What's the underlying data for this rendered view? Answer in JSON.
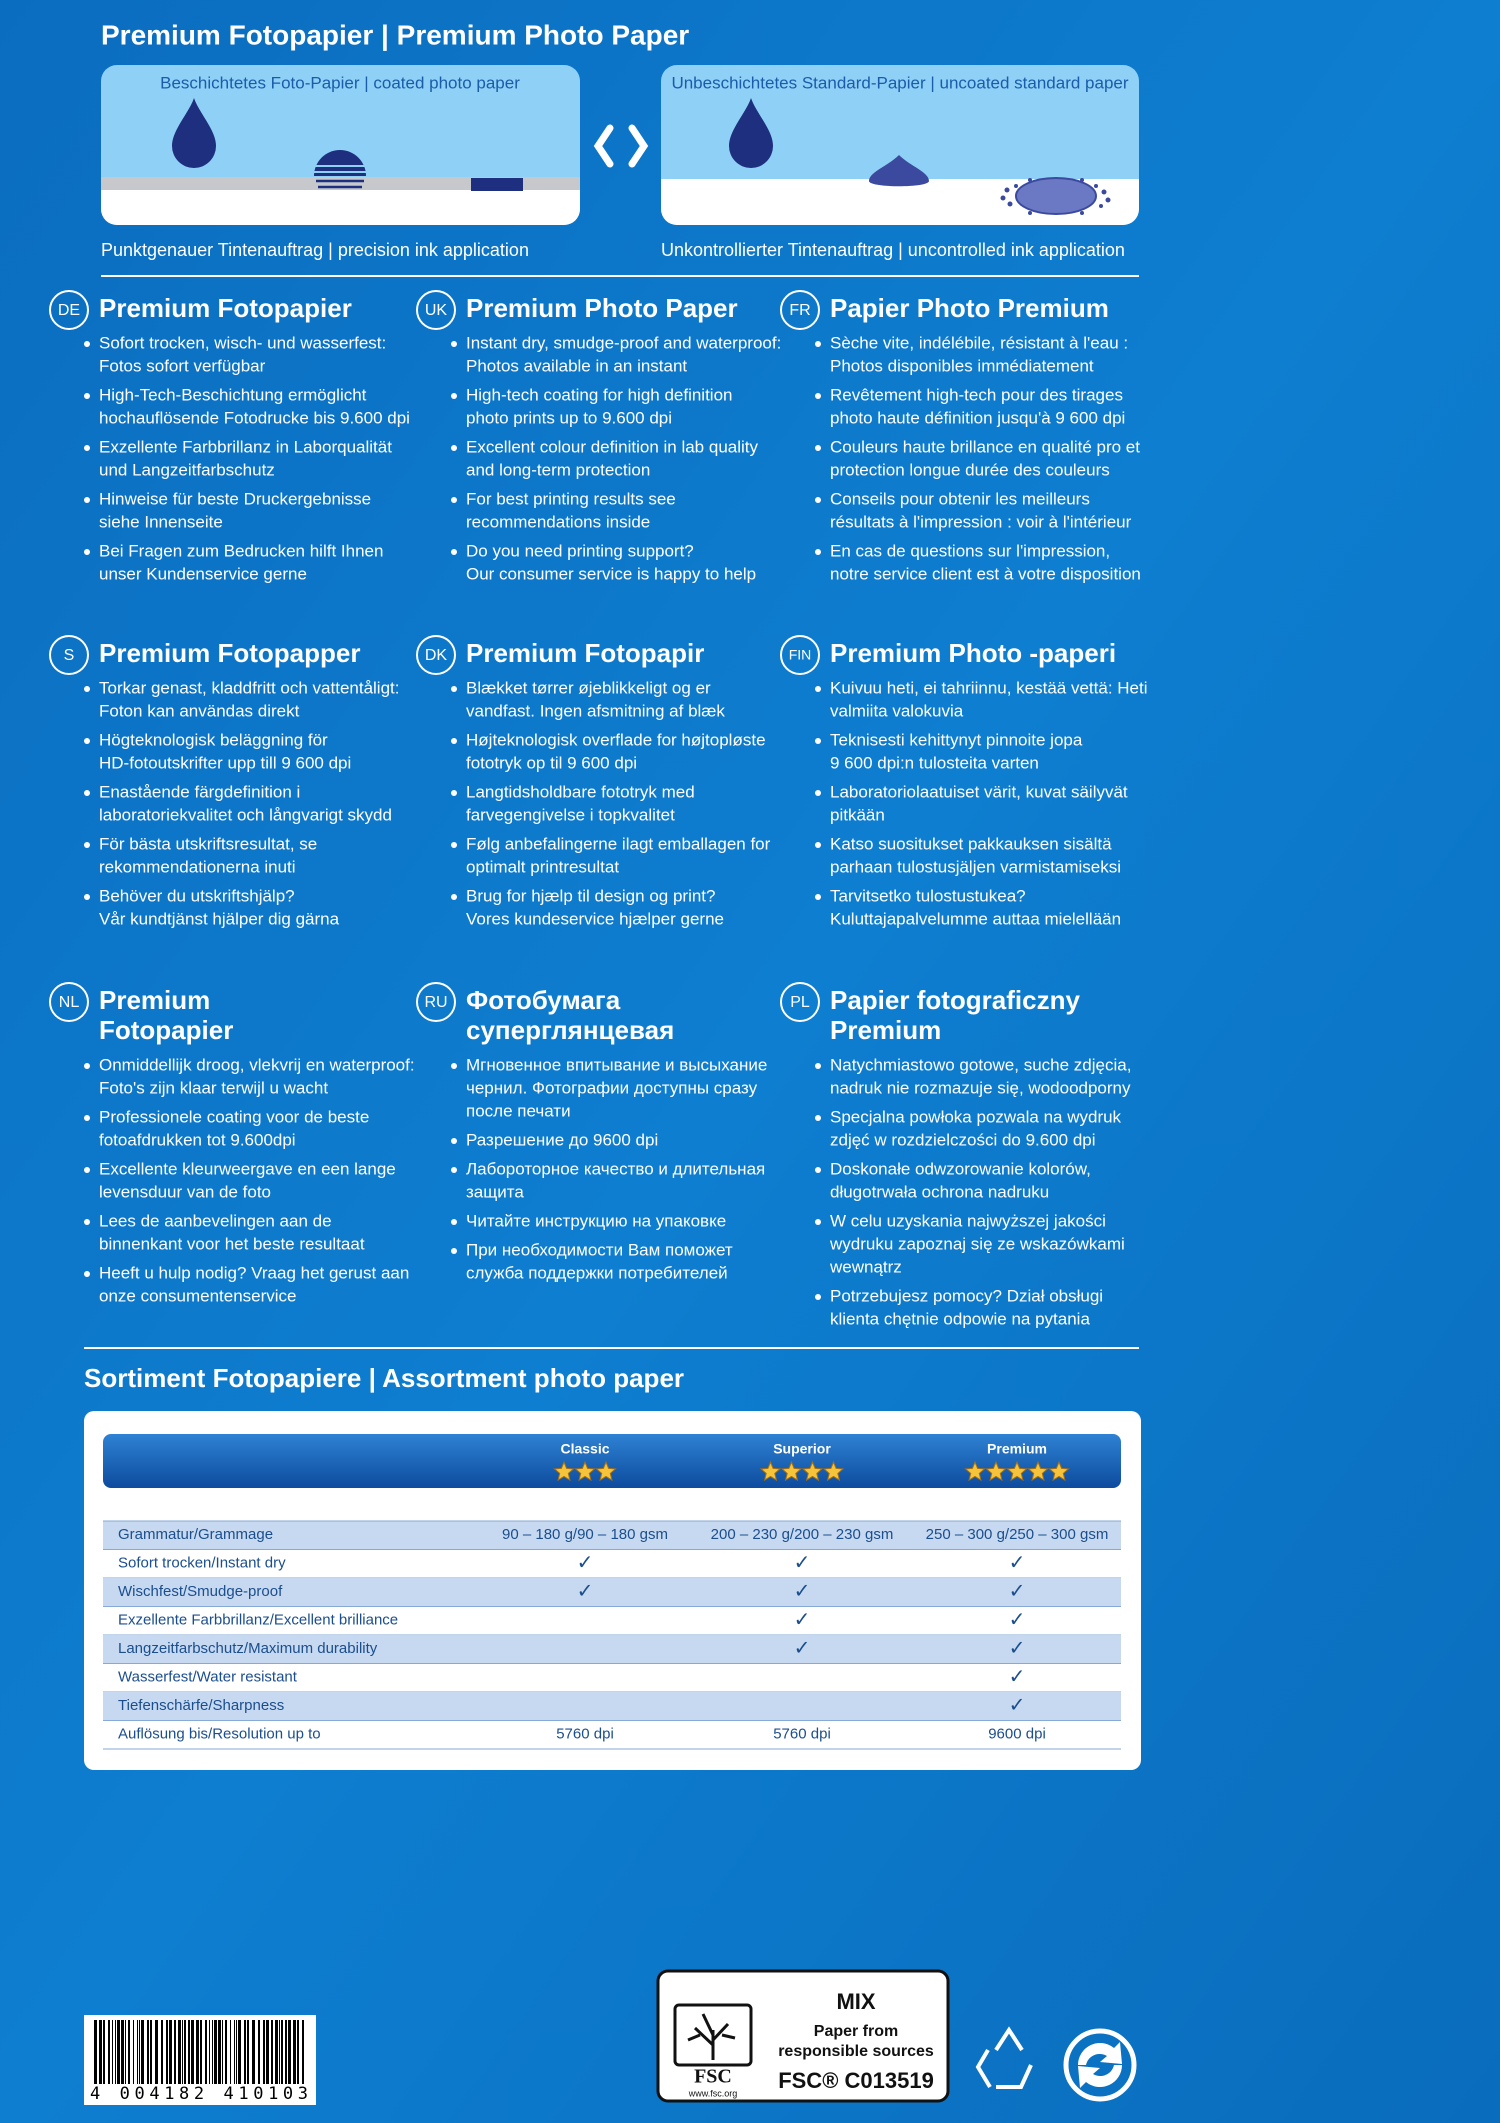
{
  "header": {
    "title": "Premium Fotopapier | Premium Photo Paper",
    "coated": {
      "label": "Beschichtetes Foto-Papier | coated photo paper",
      "caption": "Punktgenauer Tintenauftrag | precision ink application"
    },
    "uncoated": {
      "label": "Unbeschichtetes Standard-Papier | uncoated standard paper",
      "caption": "Unkontrollierter Tintenauftrag | uncontrolled ink application"
    }
  },
  "sections": [
    {
      "code": "DE",
      "heading": [
        "Premium Fotopapier"
      ],
      "bullets": [
        [
          "Sofort trocken, wisch- und wasserfest:",
          "Fotos sofort verfügbar"
        ],
        [
          "High-Tech-Beschichtung ermöglicht",
          "hochauflösende Fotodrucke bis 9.600 dpi"
        ],
        [
          "Exzellente Farbbrillanz in Laborqualität",
          "und Langzeitfarbschutz"
        ],
        [
          "Hinweise für beste Druckergebnisse",
          "siehe Innenseite"
        ],
        [
          "Bei Fragen zum Bedrucken hilft Ihnen",
          "unser Kundenservice gerne"
        ]
      ]
    },
    {
      "code": "UK",
      "heading": [
        "Premium Photo Paper"
      ],
      "bullets": [
        [
          "Instant dry, smudge-proof and waterproof:",
          "Photos available in an instant"
        ],
        [
          "High-tech coating for high definition",
          "photo prints up to 9.600 dpi"
        ],
        [
          "Excellent colour definition in lab quality",
          "and long-term protection"
        ],
        [
          "For best printing results see",
          "recommendations inside"
        ],
        [
          "Do you need printing support?",
          "Our consumer service is happy to help"
        ]
      ]
    },
    {
      "code": "FR",
      "heading": [
        "Papier Photo Premium"
      ],
      "bullets": [
        [
          "Sèche vite, indélébile, résistant à l'eau :",
          "Photos disponibles immédiatement"
        ],
        [
          "Revêtement high-tech pour des tirages",
          "photo haute définition jusqu'à 9 600 dpi"
        ],
        [
          "Couleurs haute brillance en qualité pro et",
          "protection longue durée des couleurs"
        ],
        [
          "Conseils pour obtenir les meilleurs",
          "résultats à l'impression : voir à l'intérieur"
        ],
        [
          "En cas de questions sur l'impression,",
          "notre service client est à votre disposition"
        ]
      ]
    },
    {
      "code": "S",
      "heading": [
        "Premium Fotopapper"
      ],
      "bullets": [
        [
          "Torkar genast, kladdfritt och vattentåligt:",
          "Foton kan användas direkt"
        ],
        [
          "Högteknologisk beläggning för",
          "HD-fotoutskrifter upp till 9 600 dpi"
        ],
        [
          "Enastående färgdefinition i",
          "laboratoriekvalitet och långvarigt skydd"
        ],
        [
          "För bästa utskriftsresultat, se",
          "rekommendationerna inuti"
        ],
        [
          "Behöver du utskriftshjälp?",
          "Vår kundtjänst hjälper dig gärna"
        ]
      ]
    },
    {
      "code": "DK",
      "heading": [
        "Premium Fotopapir"
      ],
      "bullets": [
        [
          "Blækket tørrer øjeblikkeligt og er",
          "vandfast. Ingen afsmitning af blæk"
        ],
        [
          "Højteknologisk overflade for højtopløste",
          "fototryk op til 9 600 dpi"
        ],
        [
          "Langtidsholdbare fototryk med",
          "farvegengivelse i topkvalitet"
        ],
        [
          "Følg anbefalingerne ilagt emballagen for",
          "optimalt printresultat"
        ],
        [
          "Brug for hjælp til design og print?",
          "Vores kundeservice hjælper gerne"
        ]
      ]
    },
    {
      "code": "FIN",
      "heading": [
        "Premium Photo -paperi"
      ],
      "bullets": [
        [
          "Kuivuu heti, ei tahriinnu, kestää vettä: Heti",
          "valmiita valokuvia"
        ],
        [
          "Teknisesti kehittynyt pinnoite jopa",
          "9 600 dpi:n tulosteita varten"
        ],
        [
          "Laboratoriolaatuiset värit, kuvat säilyvät",
          "pitkään"
        ],
        [
          "Katso suositukset pakkauksen sisältä",
          "parhaan tulostusjäljen varmistamiseksi"
        ],
        [
          "Tarvitsetko tulostustukea?",
          "Kuluttajapalvelumme auttaa mielellään"
        ]
      ]
    },
    {
      "code": "NL",
      "heading": [
        "Premium",
        "Fotopapier"
      ],
      "bullets": [
        [
          "Onmiddellijk droog, vlekvrij en waterproof:",
          "Foto's zijn klaar terwijl u wacht"
        ],
        [
          "Professionele coating voor de beste",
          "fotoafdrukken tot 9.600dpi"
        ],
        [
          "Excellente kleurweergave en een lange",
          "levensduur van de foto"
        ],
        [
          "Lees de aanbevelingen aan de",
          "binnenkant voor het beste resultaat"
        ],
        [
          "Heeft u hulp nodig? Vraag het gerust aan",
          "onze consumentenservice"
        ]
      ]
    },
    {
      "code": "RU",
      "heading": [
        "Фотобумага",
        "суперглянцевая"
      ],
      "bullets": [
        [
          "Мгновенное впитывание и высыхание",
          "чернил. Фотографии доступны сразу",
          "после печати"
        ],
        [
          "Разрешение до 9600 dpi"
        ],
        [
          "Лабороторное качество и длительная",
          "защита"
        ],
        [
          "Читайте инструкцию на упаковке"
        ],
        [
          "При необходимости Вам поможет",
          "служба поддержки потребителей"
        ]
      ]
    },
    {
      "code": "PL",
      "heading": [
        "Papier fotograficzny",
        "Premium"
      ],
      "bullets": [
        [
          "Natychmiastowo gotowe, suche zdjęcia,",
          "nadruk nie rozmazuje się, wodoodporny"
        ],
        [
          "Specjalna powłoka pozwala na wydruk",
          "zdjęć w rozdzielczości do 9.600 dpi"
        ],
        [
          "Doskonałe odwzorowanie kolorów,",
          "długotrwała ochrona nadruku"
        ],
        [
          "W celu uzyskania najwyższej jakości",
          "wydruku zapoznaj się ze wskazówkami",
          "wewnątrz"
        ],
        [
          "Potrzebujesz pomocy? Dział obsługi",
          "klienta chętnie odpowie na pytania"
        ]
      ]
    }
  ],
  "assortment": {
    "title": "Sortiment Fotopapiere | Assortment photo paper",
    "columns": [
      {
        "name": "Classic",
        "stars": 3
      },
      {
        "name": "Superior",
        "stars": 4
      },
      {
        "name": "Premium",
        "stars": 5
      }
    ],
    "rows": [
      {
        "label": "Grammatur/Grammage",
        "cells": [
          "90 – 180 g/90 – 180 gsm",
          "200 – 230 g/200 – 230 gsm",
          "250 – 300 g/250 – 300 gsm"
        ]
      },
      {
        "label": "Sofort trocken/Instant dry",
        "cells": [
          "✓",
          "✓",
          "✓"
        ]
      },
      {
        "label": "Wischfest/Smudge-proof",
        "cells": [
          "✓",
          "✓",
          "✓"
        ]
      },
      {
        "label": "Exzellente Farbbrillanz/Excellent brilliance",
        "cells": [
          null,
          "✓",
          "✓"
        ]
      },
      {
        "label": "Langzeitfarbschutz/Maximum durability",
        "cells": [
          null,
          "✓",
          "✓"
        ]
      },
      {
        "label": "Wasserfest/Water resistant",
        "cells": [
          null,
          null,
          "✓"
        ]
      },
      {
        "label": "Tiefenschärfe/Sharpness",
        "cells": [
          null,
          null,
          "✓"
        ]
      },
      {
        "label": "Auflösung bis/Resolution up to",
        "cells": [
          "5760 dpi",
          "5760 dpi",
          "9600 dpi"
        ]
      }
    ]
  },
  "footer": {
    "barcode": "4 004182 410103",
    "fsc": {
      "logo": "FSC",
      "url": "www.fsc.org",
      "mix": "MIX",
      "line1": "Paper from",
      "line2": "responsible sources",
      "code": "FSC® C013519"
    }
  }
}
